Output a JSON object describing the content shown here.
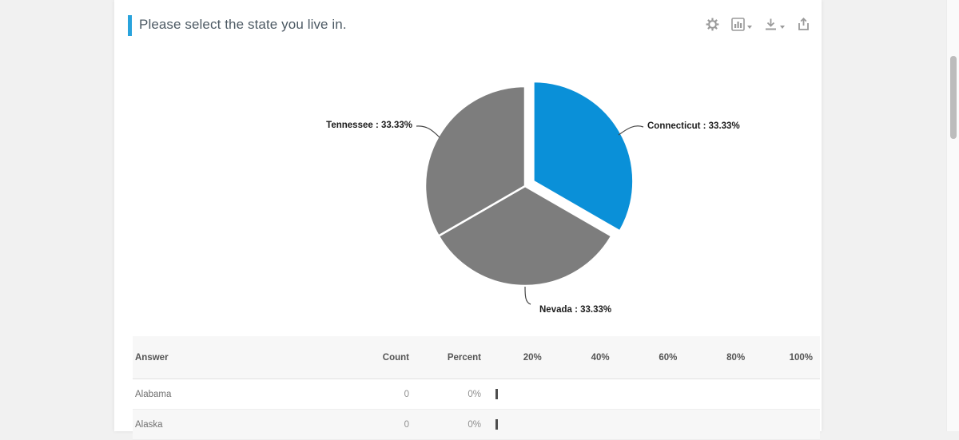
{
  "header": {
    "title": "Please select the state you live in.",
    "toolbar": {
      "settings": "settings",
      "chart_type": "chart-type",
      "download": "download",
      "share": "share"
    }
  },
  "chart_data": {
    "type": "pie",
    "title": "Please select the state you live in.",
    "legend_position": "outside-labels",
    "colors": {
      "highlight": "#0a90d8",
      "muted": "#7d7d7d"
    },
    "slices": [
      {
        "label": "Connecticut",
        "value": 33.33,
        "display": "Connecticut : 33.33%",
        "color": "#0a90d8",
        "exploded": true
      },
      {
        "label": "Nevada",
        "value": 33.33,
        "display": "Nevada : 33.33%",
        "color": "#7d7d7d",
        "exploded": false
      },
      {
        "label": "Tennessee",
        "value": 33.33,
        "display": "Tennessee : 33.33%",
        "color": "#7d7d7d",
        "exploded": false
      }
    ]
  },
  "table": {
    "columns": {
      "answer": "Answer",
      "count": "Count",
      "percent": "Percent"
    },
    "scale_ticks": [
      "20%",
      "40%",
      "60%",
      "80%",
      "100%"
    ],
    "rows": [
      {
        "answer": "Alabama",
        "count": "0",
        "percent": "0%",
        "bar_value": 0
      },
      {
        "answer": "Alaska",
        "count": "0",
        "percent": "0%",
        "bar_value": 0
      }
    ]
  },
  "colors": {
    "accent_bar": "#29a3dc",
    "pie_highlight": "#0a90d8",
    "pie_muted": "#7d7d7d",
    "page_background": "#f1f1f1"
  }
}
